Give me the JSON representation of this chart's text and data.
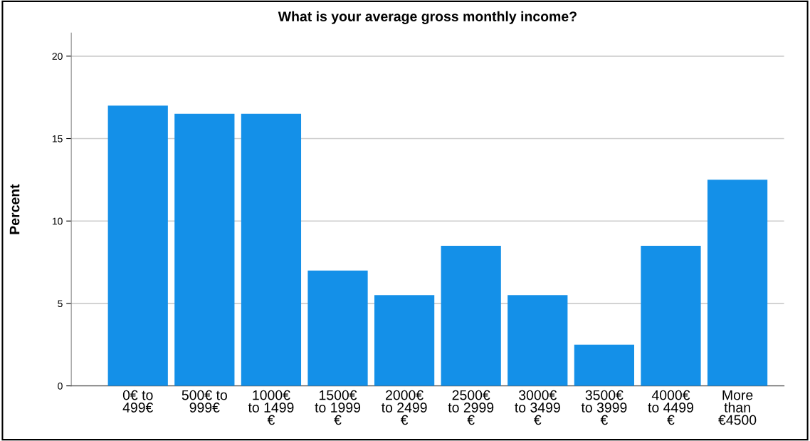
{
  "chart_data": {
    "type": "bar",
    "title": "What is your average gross monthly income?",
    "ylabel": "Percent",
    "categories": [
      "0€ to\n499€",
      "500€ to\n999€",
      "1000€\nto 1499\n€",
      "1500€\nto 1999\n€",
      "2000€\nto 2499\n€",
      "2500€\nto 2999\n€",
      "3000€\nto 3499\n€",
      "3500€\nto 3999\n€",
      "4000€\nto 4499\n€",
      "More\nthan\n€4500"
    ],
    "values": [
      17,
      16.5,
      16.5,
      7,
      5.5,
      8.5,
      5.5,
      2.5,
      8.5,
      12.5
    ],
    "color": "#1490e8",
    "ylim": [
      0,
      21.4
    ],
    "yticks": [
      0,
      5,
      10,
      15,
      20
    ],
    "grid": "y"
  }
}
